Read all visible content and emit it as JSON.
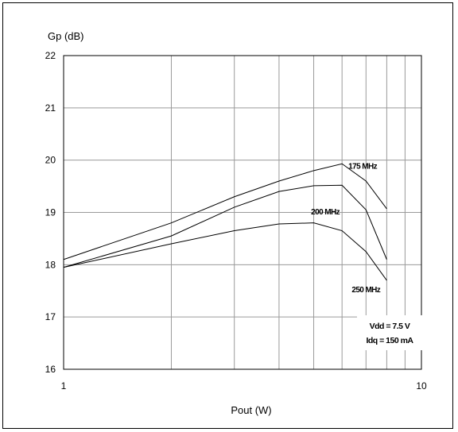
{
  "chart_data": {
    "type": "line",
    "x_scale": "log",
    "xlim": [
      1,
      10
    ],
    "ylim": [
      16,
      22
    ],
    "xlabel": "Pout (W)",
    "ylabel": "Gp (dB)",
    "x_tick_labels": [
      "1",
      "10"
    ],
    "y_tick_labels": [
      "16",
      "17",
      "18",
      "19",
      "20",
      "21",
      "22"
    ],
    "grid": true,
    "series": [
      {
        "name": "175 MHz",
        "x": [
          1,
          2,
          3,
          4,
          5,
          6,
          7,
          8
        ],
        "y": [
          18.1,
          18.8,
          19.3,
          19.6,
          19.8,
          19.93,
          19.6,
          19.07
        ]
      },
      {
        "name": "200 MHz",
        "x": [
          1,
          2,
          3,
          4,
          5,
          6,
          7,
          8
        ],
        "y": [
          17.95,
          18.55,
          19.1,
          19.4,
          19.51,
          19.52,
          19.05,
          18.1
        ]
      },
      {
        "name": "250 MHz",
        "x": [
          1,
          2,
          3,
          4,
          5,
          6,
          7,
          8
        ],
        "y": [
          17.95,
          18.4,
          18.65,
          18.78,
          18.8,
          18.65,
          18.25,
          17.7
        ]
      }
    ],
    "annotation_lines": [
      "Vdd = 7.5 V",
      "Idq = 150 mA"
    ]
  }
}
